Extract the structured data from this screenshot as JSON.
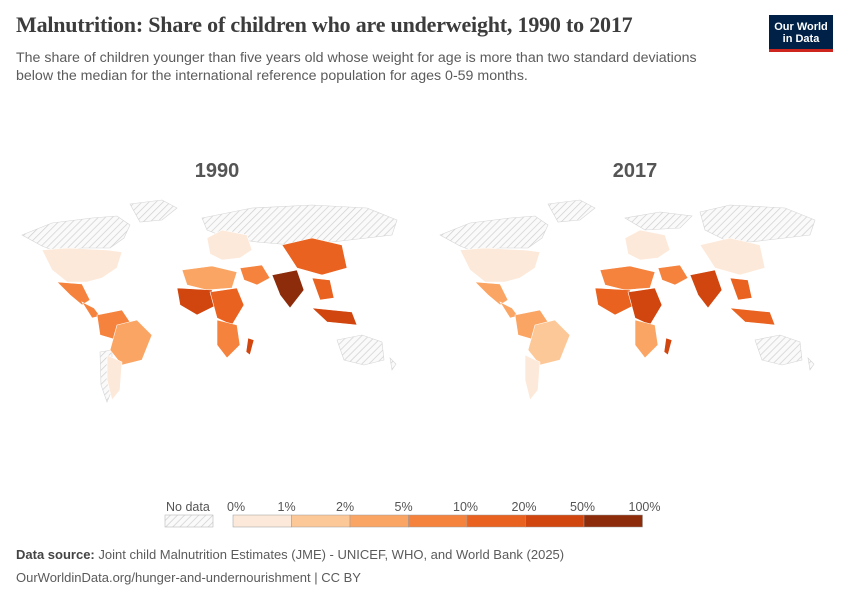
{
  "title": "Malnutrition: Share of children who are underweight, 1990 to 2017",
  "subtitle": "The share of children younger than five years old whose weight for age is more than two standard deviations below the median for the international reference population for ages 0-59 months.",
  "logo": {
    "line1": "Our World",
    "line2": "in Data"
  },
  "maps": [
    {
      "year": "1990"
    },
    {
      "year": "2017"
    }
  ],
  "legend": {
    "no_data_label": "No data",
    "ticks": [
      "0%",
      "1%",
      "2%",
      "5%",
      "10%",
      "20%",
      "50%",
      "100%"
    ],
    "colors": [
      "#fde9d9",
      "#fdc897",
      "#fba564",
      "#f5833e",
      "#e9621f",
      "#d1460e",
      "#8c2c0b"
    ],
    "no_data_color": "#e4e4e4"
  },
  "source": {
    "label": "Data source:",
    "text": "Joint child Malnutrition Estimates (JME) - UNICEF, WHO, and World Bank (2025)"
  },
  "footer": "OurWorldinData.org/hunger-and-undernourishment | CC BY"
}
